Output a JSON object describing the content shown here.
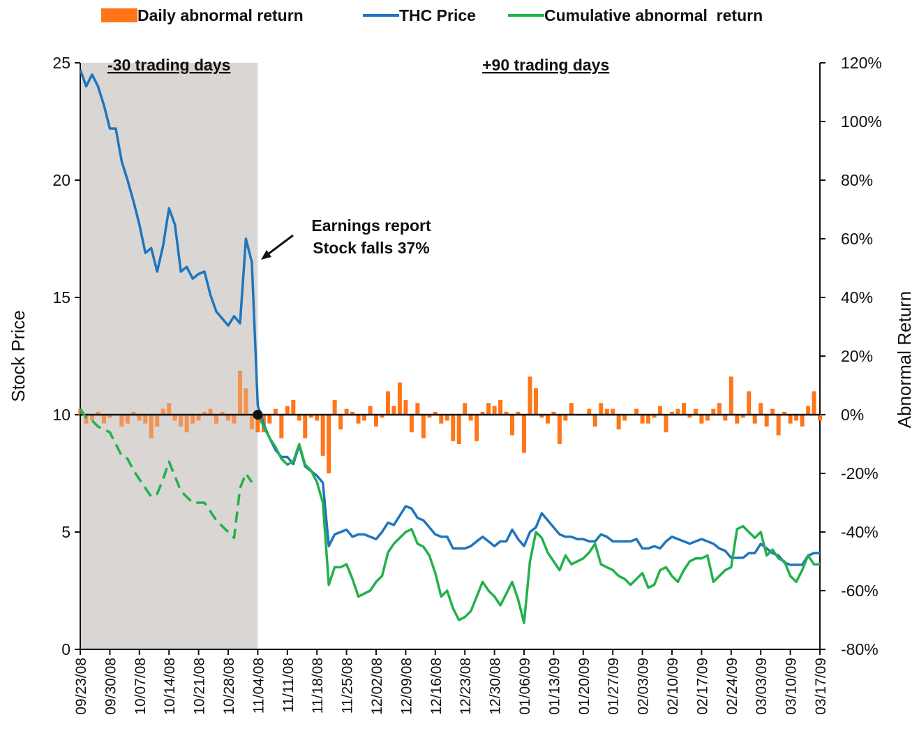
{
  "chart_data": {
    "type": "bar-line",
    "categories": [
      "09/23/08",
      null,
      null,
      null,
      null,
      "09/30/08",
      null,
      null,
      null,
      null,
      "10/07/08",
      null,
      null,
      null,
      null,
      "10/14/08",
      null,
      null,
      null,
      null,
      "10/21/08",
      null,
      null,
      null,
      null,
      "10/28/08",
      null,
      null,
      null,
      null,
      "11/04/08",
      null,
      null,
      null,
      null,
      "11/11/08",
      null,
      null,
      null,
      null,
      "11/18/08",
      null,
      null,
      null,
      null,
      "11/25/08",
      null,
      null,
      null,
      null,
      "12/02/08",
      null,
      null,
      null,
      null,
      "12/09/08",
      null,
      null,
      null,
      null,
      "12/16/08",
      null,
      null,
      null,
      null,
      "12/23/08",
      null,
      null,
      null,
      null,
      "12/30/08",
      null,
      null,
      null,
      null,
      "01/06/09",
      null,
      null,
      null,
      null,
      "01/13/09",
      null,
      null,
      null,
      null,
      "01/20/09",
      null,
      null,
      null,
      null,
      "01/27/09",
      null,
      null,
      null,
      null,
      "02/03/09",
      null,
      null,
      null,
      null,
      "02/10/09",
      null,
      null,
      null,
      null,
      "02/17/09",
      null,
      null,
      null,
      null,
      "02/24/09",
      null,
      null,
      null,
      null,
      "03/03/09",
      null,
      null,
      null,
      null,
      "03/10/09",
      null,
      null,
      null,
      null,
      "03/17/09"
    ],
    "series": [
      {
        "name": "Daily abnormal return",
        "type": "bar",
        "axis": "y2",
        "color": "#ff7518",
        "values": [
          2,
          -3,
          -2,
          1,
          -3,
          -1,
          0,
          -4,
          -3,
          1,
          -2,
          -3,
          -8,
          -4,
          2,
          4,
          -2,
          -4,
          -6,
          -3,
          -2,
          1,
          2,
          -3,
          1,
          -2,
          -3,
          15,
          9,
          -5,
          -6,
          -6,
          -3,
          2,
          -8,
          3,
          5,
          -2,
          -8,
          -1,
          -2,
          -14,
          -20,
          5,
          -5,
          2,
          1,
          -3,
          -2,
          3,
          -4,
          -1,
          8,
          3,
          11,
          5,
          -6,
          4,
          -8,
          -1,
          1,
          -3,
          -2,
          -9,
          -10,
          4,
          -2,
          -9,
          1,
          4,
          3,
          5,
          1,
          -7,
          1,
          -13,
          13,
          9,
          -1,
          -3,
          1,
          -10,
          -2,
          4,
          0,
          0,
          2,
          -4,
          4,
          2,
          2,
          -5,
          -2,
          0,
          2,
          -3,
          -3,
          -1,
          3,
          -6,
          1,
          2,
          4,
          -1,
          2,
          -3,
          -2,
          2,
          4,
          -2,
          13,
          -3,
          -1,
          8,
          -3,
          4,
          -4,
          2,
          -7,
          1,
          -3,
          -2,
          -4,
          3,
          8,
          -2
        ]
      },
      {
        "name": "THC Price",
        "type": "line",
        "color": "#1f75be",
        "values": [
          24.7,
          24.0,
          24.5,
          24.0,
          23.2,
          22.2,
          22.2,
          20.8,
          20.0,
          19.1,
          18.1,
          16.9,
          17.1,
          16.1,
          17.2,
          18.8,
          18.1,
          16.1,
          16.3,
          15.8,
          16.0,
          16.1,
          15.1,
          14.4,
          14.1,
          13.8,
          14.2,
          13.9,
          17.5,
          16.5,
          10.4,
          9.6,
          9.0,
          8.5,
          8.2,
          8.2,
          7.9,
          8.7,
          7.8,
          7.6,
          7.4,
          7.1,
          4.4,
          4.9,
          5.0,
          5.1,
          4.8,
          4.9,
          4.9,
          4.8,
          4.7,
          5.0,
          5.4,
          5.3,
          5.7,
          6.1,
          6.0,
          5.6,
          5.5,
          5.2,
          4.9,
          4.8,
          4.8,
          4.3,
          4.3,
          4.3,
          4.4,
          4.6,
          4.8,
          4.6,
          4.4,
          4.6,
          4.6,
          5.1,
          4.7,
          4.4,
          5.0,
          5.2,
          5.8,
          5.5,
          5.2,
          4.9,
          4.8,
          4.8,
          4.7,
          4.7,
          4.6,
          4.6,
          4.9,
          4.8,
          4.6,
          4.6,
          4.6,
          4.6,
          4.7,
          4.3,
          4.3,
          4.4,
          4.3,
          4.6,
          4.8,
          4.7,
          4.6,
          4.5,
          4.6,
          4.7,
          4.6,
          4.5,
          4.3,
          4.2,
          3.9,
          3.9,
          3.9,
          4.1,
          4.1,
          4.5,
          4.3,
          4.1,
          4.0,
          3.7,
          3.6,
          3.6,
          3.6,
          4.0,
          4.1,
          4.1
        ]
      },
      {
        "name": "Cumulative abnormal  return",
        "type": "line",
        "axis": "y2",
        "color": "#22b14c",
        "values": [
          2,
          -1,
          -2,
          -4,
          -5,
          -6,
          -10,
          -14,
          -15,
          -19,
          -22,
          -25,
          -28,
          -27,
          -22,
          -16,
          -21,
          -26,
          -28,
          -30,
          -30,
          -30,
          -33,
          -36,
          -38,
          -40,
          -42,
          -25,
          -20,
          -23,
          0,
          -4,
          -8,
          -11,
          -15,
          -17,
          -16,
          -10,
          -17,
          -19,
          -23,
          -30,
          -58,
          -52,
          -52,
          -51,
          -56,
          -62,
          -61,
          -60,
          -57,
          -55,
          -47,
          -44,
          -42,
          -40,
          -39,
          -44,
          -45,
          -48,
          -54,
          -62,
          -60,
          -66,
          -70,
          -69,
          -67,
          -62,
          -57,
          -60,
          -62,
          -65,
          -61,
          -57,
          -63,
          -71,
          -50,
          -40,
          -42,
          -47,
          -50,
          -53,
          -48,
          -51,
          -50,
          -49,
          -47,
          -44,
          -51,
          -52,
          -53,
          -55,
          -56,
          -58,
          -56,
          -54,
          -59,
          -58,
          -53,
          -52,
          -55,
          -57,
          -53,
          -50,
          -49,
          -49,
          -48,
          -57,
          -55,
          -53,
          -52,
          -39,
          -38,
          -40,
          -42,
          -40,
          -48,
          -46,
          -49,
          -50,
          -55,
          -57,
          -53,
          -48,
          -51,
          -51
        ]
      }
    ],
    "ylabel": "Stock Price",
    "y2label": "Abnormal Return",
    "ylim": [
      0,
      25
    ],
    "yticks": [
      0,
      5,
      10,
      15,
      20,
      25
    ],
    "y2lim": [
      -80,
      120
    ],
    "y2ticks": [
      {
        "value": -80,
        "label": "-80%"
      },
      {
        "value": -60,
        "label": "-60%"
      },
      {
        "value": -40,
        "label": "-40%"
      },
      {
        "value": -20,
        "label": "-20%"
      },
      {
        "value": 0,
        "label": "0%"
      },
      {
        "value": 20,
        "label": "20%"
      },
      {
        "value": 40,
        "label": "40%"
      },
      {
        "value": 60,
        "label": "60%"
      },
      {
        "value": 80,
        "label": "80%"
      },
      {
        "value": 100,
        "label": "100%"
      },
      {
        "value": 120,
        "label": "120%"
      }
    ],
    "shade": {
      "from": "09/23/08",
      "to": "11/04/08",
      "color": "#d9d6d3"
    },
    "region_labels": [
      "-30 trading days",
      "+90 trading days"
    ],
    "annotation": [
      "Earnings report",
      "Stock falls 37%"
    ],
    "legend": "top"
  }
}
